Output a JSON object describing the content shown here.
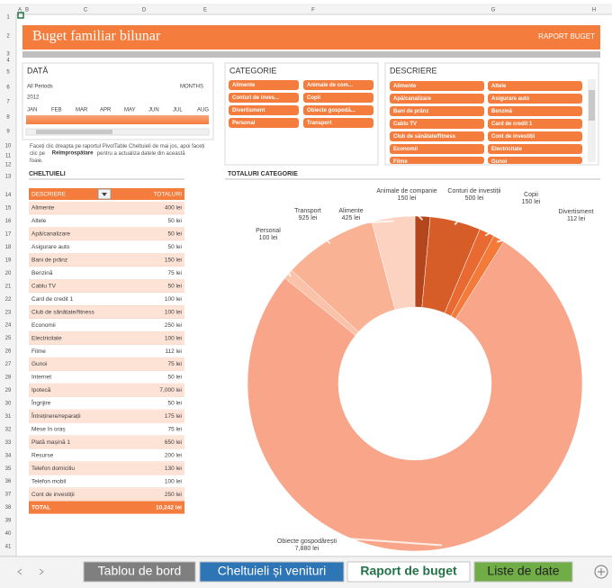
{
  "sheet": {
    "columns": [
      "A",
      "B",
      "C",
      "D",
      "E",
      "F",
      "G",
      "H"
    ],
    "rows": [
      1,
      2,
      3,
      4,
      5,
      6,
      7,
      8,
      9,
      10,
      11,
      12,
      13,
      14,
      15,
      16,
      17,
      18,
      19,
      20,
      21,
      22,
      23,
      24,
      25,
      26,
      27,
      28,
      29,
      30,
      31,
      32,
      33,
      34,
      35,
      36,
      37,
      38,
      39,
      40,
      41
    ]
  },
  "header": {
    "title": "Buget familiar bilunar",
    "subtitle": "RAPORT BUGET"
  },
  "date_slicer": {
    "title": "DATĂ",
    "period": "All Periods",
    "level": "MONTHS",
    "year": "2012",
    "months": [
      "JAN",
      "FEB",
      "MAR",
      "APR",
      "MAY",
      "JUN",
      "JUL",
      "AUG"
    ]
  },
  "category_slicer": {
    "title": "CATEGORIE",
    "items": [
      "Alimente",
      "Animale de com...",
      "Conturi de inves...",
      "Copii",
      "Divertisment",
      "Obiecte gospodă...",
      "Personal",
      "Transport"
    ]
  },
  "description_slicer": {
    "title": "DESCRIERE",
    "items": [
      "Alimente",
      "Altele",
      "Apă/canalizare",
      "Asigurare auto",
      "Bani de prânz",
      "Benzină",
      "Cablu TV",
      "Card de credit 1",
      "Club de sănătate/fitness",
      "Cont de investiții",
      "Economii",
      "Electricitate",
      "Filme",
      "Gunoi"
    ]
  },
  "note": {
    "text_1": "Faceți clic dreapta pe raportul PivotTable Cheltuieli de mai jos, apoi faceți clic pe",
    "bold": "Reîmprospătare",
    "text_2": "pentru a actualiza datele din această foaie."
  },
  "table": {
    "title": "CHELTUIELI",
    "columns": [
      "DESCRIERE",
      "TOTALURI"
    ],
    "rows": [
      [
        "Alimente",
        "400 lei"
      ],
      [
        "Altele",
        "50 lei"
      ],
      [
        "Apă/canalizare",
        "50 lei"
      ],
      [
        "Asigurare auto",
        "50 lei"
      ],
      [
        "Bani de prânz",
        "150 lei"
      ],
      [
        "Benzină",
        "75 lei"
      ],
      [
        "Cablu TV",
        "50 lei"
      ],
      [
        "Card de credit 1",
        "100 lei"
      ],
      [
        "Club de sănătate/fitness",
        "100 lei"
      ],
      [
        "Economii",
        "250 lei"
      ],
      [
        "Electricitate",
        "100 lei"
      ],
      [
        "Filme",
        "112 lei"
      ],
      [
        "Gunoi",
        "75 lei"
      ],
      [
        "Internet",
        "50 lei"
      ],
      [
        "Ipotecă",
        "7,000 lei"
      ],
      [
        "Îngrijire",
        "50 lei"
      ],
      [
        "Întreținere/reparații",
        "175 lei"
      ],
      [
        "Mese în oraș",
        "75 lei"
      ],
      [
        "Plată mașină 1",
        "650 lei"
      ],
      [
        "Resurse",
        "200 lei"
      ],
      [
        "Telefon domiciliu",
        "130 lei"
      ],
      [
        "Telefon mobil",
        "100 lei"
      ],
      [
        "Cont de investiții",
        "250 lei"
      ]
    ],
    "total": [
      "TOTAL",
      "10,242 lei"
    ]
  },
  "chart_data": {
    "type": "donut",
    "title": "TOTALURI CATEGORIE",
    "categories": [
      "Animale de companie",
      "Conturi de investiții",
      "Copii",
      "Divertisment",
      "Obiecte gospodărești",
      "Personal",
      "Transport",
      "Alimente"
    ],
    "values": [
      150,
      500,
      150,
      112,
      7880,
      100,
      925,
      425
    ],
    "value_labels": [
      "150 lei",
      "500 lei",
      "150 lei",
      "112 lei",
      "7,880 lei",
      "100 lei",
      "925 lei",
      "425 lei"
    ],
    "colors": [
      "#b4461d",
      "#d65d27",
      "#e86a32",
      "#f47a3a",
      "#f9a589",
      "#fbc2aa",
      "#fab295",
      "#fcd2c0"
    ]
  },
  "tabs": [
    "Tablou de bord",
    "Cheltuieli și venituri",
    "Raport de buget",
    "Liste de date"
  ]
}
